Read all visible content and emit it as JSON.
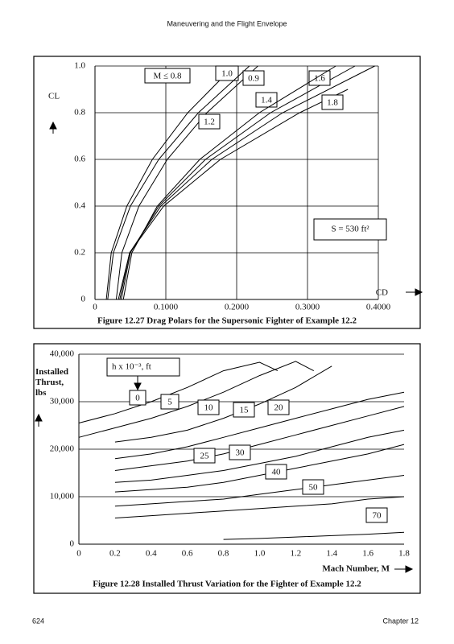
{
  "header": {
    "title": "Maneuvering and the Flight Envelope"
  },
  "footer": {
    "page": "624",
    "chapter": "Chapter 12"
  },
  "chart_data": [
    {
      "type": "line",
      "caption": "Figure 12.27 Drag Polars for the Supersonic Fighter of Example 12.2",
      "ylabel": "CL",
      "xlabel": "CD",
      "xlim": [
        0,
        0.4
      ],
      "ylim": [
        0,
        1
      ],
      "xticks": [
        0,
        {
          "value": 0.1,
          "label": "0.1000"
        },
        {
          "value": 0.2,
          "label": "0.2000"
        },
        {
          "value": 0.3,
          "label": "0.3000"
        },
        {
          "value": 0.4,
          "label": "0.4000"
        }
      ],
      "yticks": [
        0,
        0.2,
        0.4,
        0.6,
        0.8,
        {
          "value": 1,
          "label": "1.0"
        }
      ],
      "grid": "both",
      "annotations": [
        "S = 530 ft²"
      ],
      "series": [
        {
          "name": "M ≤ 0.8",
          "color": "#000000",
          "x": [
            0.016,
            0.023,
            0.045,
            0.081,
            0.131,
            0.196
          ],
          "values": [
            0,
            0.2,
            0.4,
            0.6,
            0.8,
            1
          ]
        },
        {
          "name": "1.0",
          "color": "#000000",
          "x": [
            0.03,
            0.038,
            0.062,
            0.102,
            0.158,
            0.23
          ],
          "values": [
            0,
            0.2,
            0.4,
            0.6,
            0.8,
            1
          ]
        },
        {
          "name": "0.9",
          "color": "#000000",
          "x": [
            0.018,
            0.026,
            0.05,
            0.09,
            0.146,
            0.218
          ],
          "values": [
            0,
            0.2,
            0.4,
            0.6,
            0.8,
            1
          ]
        },
        {
          "name": "1.4",
          "color": "#000000",
          "x": [
            0.037,
            0.05,
            0.09,
            0.156,
            0.248,
            0.367
          ],
          "values": [
            0,
            0.2,
            0.4,
            0.6,
            0.8,
            1
          ]
        },
        {
          "name": "1.6",
          "color": "#000000",
          "x": [
            0.035,
            0.049,
            0.093,
            0.165,
            0.265,
            0.395
          ],
          "values": [
            0,
            0.2,
            0.4,
            0.6,
            0.8,
            1
          ]
        },
        {
          "name": "1.8",
          "color": "#000000",
          "x": [
            0.033,
            0.049,
            0.097,
            0.177,
            0.289,
            0.357
          ],
          "values": [
            0,
            0.2,
            0.4,
            0.6,
            0.8,
            0.9
          ]
        },
        {
          "name": "1.2",
          "color": "#000000",
          "x": [
            0.04,
            0.052,
            0.088,
            0.148,
            0.232,
            0.34
          ],
          "values": [
            0,
            0.2,
            0.4,
            0.6,
            0.8,
            1
          ]
        }
      ]
    },
    {
      "type": "line",
      "caption": "Figure 12.28 Installed Thrust Variation for the Fighter of Example 12.2",
      "ylabel": "Installed Thrust, lbs",
      "xlabel": "Mach Number, M",
      "xlim": [
        0,
        1.8
      ],
      "ylim": [
        0,
        40000
      ],
      "xticks": [
        0,
        0.2,
        0.4,
        0.6,
        0.8,
        {
          "value": 1,
          "label": "1.0"
        },
        1.2,
        1.4,
        1.6,
        1.8
      ],
      "yticks": [
        0,
        {
          "value": 10000,
          "label": "10,000"
        },
        {
          "value": 20000,
          "label": "20,000"
        },
        {
          "value": 30000,
          "label": "30,000"
        },
        {
          "value": 40000,
          "label": "40,000"
        }
      ],
      "grid": "y",
      "legend_title": "h x 10⁻³, ft",
      "series": [
        {
          "name": "0",
          "color": "#000000",
          "x": [
            0,
            0.2,
            0.4,
            0.6,
            0.8,
            1,
            1.1
          ],
          "values": [
            25500,
            27500,
            30000,
            33000,
            36500,
            38300,
            36500
          ]
        },
        {
          "name": "5",
          "color": "#000000",
          "x": [
            0,
            0.2,
            0.4,
            0.6,
            0.8,
            1,
            1.2,
            1.3
          ],
          "values": [
            22500,
            24500,
            26500,
            29000,
            32000,
            35500,
            38500,
            36500
          ]
        },
        {
          "name": "10",
          "color": "#000000",
          "x": [
            0.2,
            0.4,
            0.6,
            0.8,
            1,
            1.2,
            1.4
          ],
          "values": [
            21500,
            22500,
            24000,
            26500,
            29500,
            33000,
            37500
          ]
        },
        {
          "name": "15",
          "color": "#000000",
          "x": [
            0.2,
            0.4,
            0.6,
            0.8,
            1,
            1.2,
            1.4,
            1.6,
            1.8
          ],
          "values": [
            18000,
            19000,
            20500,
            22500,
            24500,
            26500,
            28500,
            30500,
            32000
          ]
        },
        {
          "name": "20",
          "color": "#000000",
          "x": [
            0.2,
            0.4,
            0.6,
            0.8,
            1,
            1.2,
            1.4,
            1.6,
            1.8
          ],
          "values": [
            15500,
            16500,
            17500,
            19000,
            21000,
            23000,
            25000,
            27000,
            29000
          ]
        },
        {
          "name": "25",
          "color": "#000000",
          "x": [
            0.2,
            0.4,
            0.6,
            0.8,
            1,
            1.2,
            1.4,
            1.6,
            1.8
          ],
          "values": [
            13000,
            13500,
            14500,
            15500,
            17000,
            18500,
            20500,
            22500,
            24000
          ]
        },
        {
          "name": "30",
          "color": "#000000",
          "x": [
            0.2,
            0.4,
            0.6,
            0.8,
            1,
            1.2,
            1.4,
            1.6,
            1.8
          ],
          "values": [
            11000,
            11500,
            12000,
            13000,
            14500,
            16000,
            17500,
            19000,
            21000
          ]
        },
        {
          "name": "40",
          "color": "#000000",
          "x": [
            0.2,
            0.4,
            0.6,
            0.8,
            1,
            1.2,
            1.4,
            1.6,
            1.8
          ],
          "values": [
            8000,
            8500,
            9000,
            9500,
            10500,
            11500,
            12500,
            13500,
            14500
          ]
        },
        {
          "name": "50",
          "color": "#000000",
          "x": [
            0.2,
            0.4,
            0.6,
            0.8,
            1,
            1.2,
            1.4,
            1.6,
            1.8
          ],
          "values": [
            5500,
            6000,
            6500,
            7000,
            7500,
            8000,
            8500,
            9500,
            10000
          ]
        },
        {
          "name": "70",
          "color": "#000000",
          "x": [
            0.8,
            1,
            1.2,
            1.4,
            1.6,
            1.8
          ],
          "values": [
            1000,
            1200,
            1500,
            1800,
            2100,
            2500
          ]
        }
      ]
    }
  ]
}
